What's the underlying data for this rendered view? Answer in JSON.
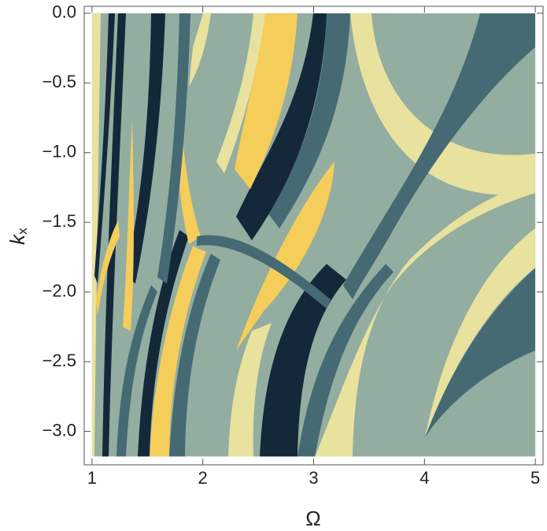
{
  "chart_data": {
    "type": "region",
    "xlabel": "Ω",
    "ylabel": "k",
    "ylabel_subscript": "x",
    "xlim": [
      0.93,
      5.07
    ],
    "ylim": [
      -3.24,
      0.05
    ],
    "xticks": [
      1,
      2,
      3,
      4,
      5
    ],
    "yticks": [
      {
        "value": 0,
        "label": "0.0"
      },
      {
        "value": -0.5,
        "label": "−0.5"
      },
      {
        "value": -1,
        "label": "−1.0"
      },
      {
        "value": -1.5,
        "label": "−1.5"
      },
      {
        "value": -2,
        "label": "−2.0"
      },
      {
        "value": -2.5,
        "label": "−2.5"
      },
      {
        "value": -3,
        "label": "−3.0"
      }
    ],
    "domain_x": [
      1,
      5
    ],
    "domain_y": [
      -3.18,
      0
    ],
    "colors": [
      "#93ada0",
      "#456a73",
      "#14283a",
      "#f4cd5a",
      "#e8e29e"
    ]
  }
}
